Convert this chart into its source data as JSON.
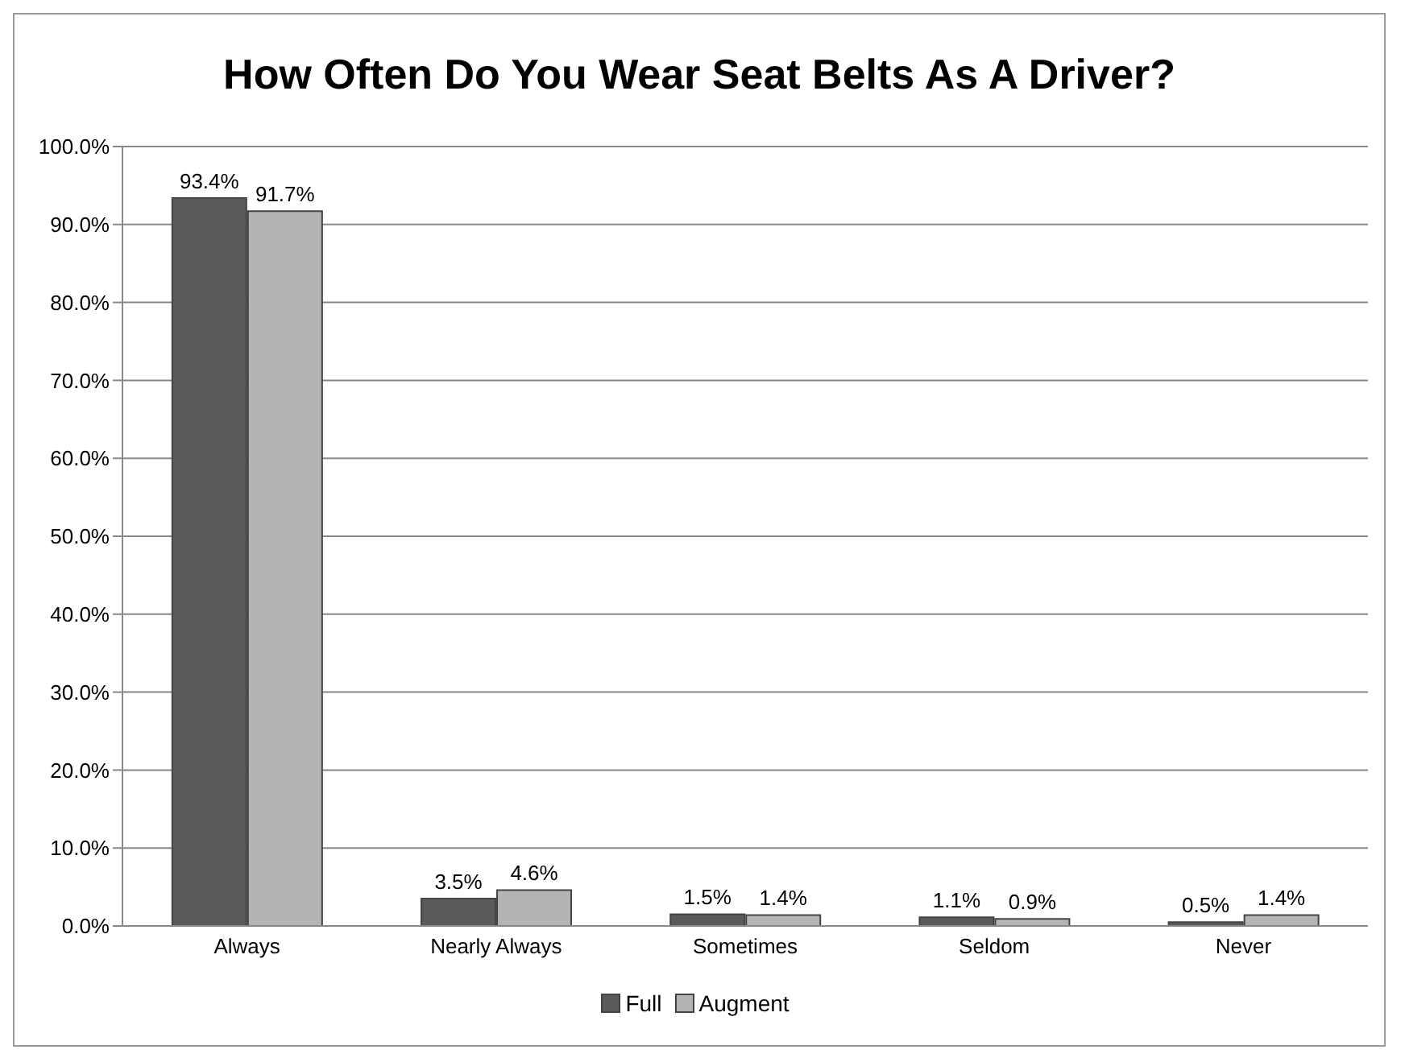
{
  "chart_data": {
    "type": "bar",
    "title": "How Often Do You Wear Seat Belts As A Driver?",
    "categories": [
      "Always",
      "Nearly Always",
      "Sometimes",
      "Seldom",
      "Never"
    ],
    "series": [
      {
        "name": "Full",
        "color": "#5a5a5a",
        "values": [
          93.4,
          3.5,
          1.5,
          1.1,
          0.5
        ],
        "value_labels": [
          "93.4%",
          "3.5%",
          "1.5%",
          "1.1%",
          "0.5%"
        ]
      },
      {
        "name": "Augment",
        "color": "#b4b4b4",
        "values": [
          91.7,
          4.6,
          1.4,
          0.9,
          1.4
        ],
        "value_labels": [
          "91.7%",
          "4.6%",
          "1.4%",
          "0.9%",
          "1.4%"
        ]
      }
    ],
    "ylim": [
      0,
      100
    ],
    "yticks": [
      {
        "value": 0,
        "label": "0.0%"
      },
      {
        "value": 10,
        "label": "10.0%"
      },
      {
        "value": 20,
        "label": "20.0%"
      },
      {
        "value": 30,
        "label": "30.0%"
      },
      {
        "value": 40,
        "label": "40.0%"
      },
      {
        "value": 50,
        "label": "50.0%"
      },
      {
        "value": 60,
        "label": "60.0%"
      },
      {
        "value": 70,
        "label": "70.0%"
      },
      {
        "value": 80,
        "label": "80.0%"
      },
      {
        "value": 90,
        "label": "90.0%"
      },
      {
        "value": 100,
        "label": "100.0%"
      }
    ],
    "grid": "y",
    "legend": "bottom"
  }
}
